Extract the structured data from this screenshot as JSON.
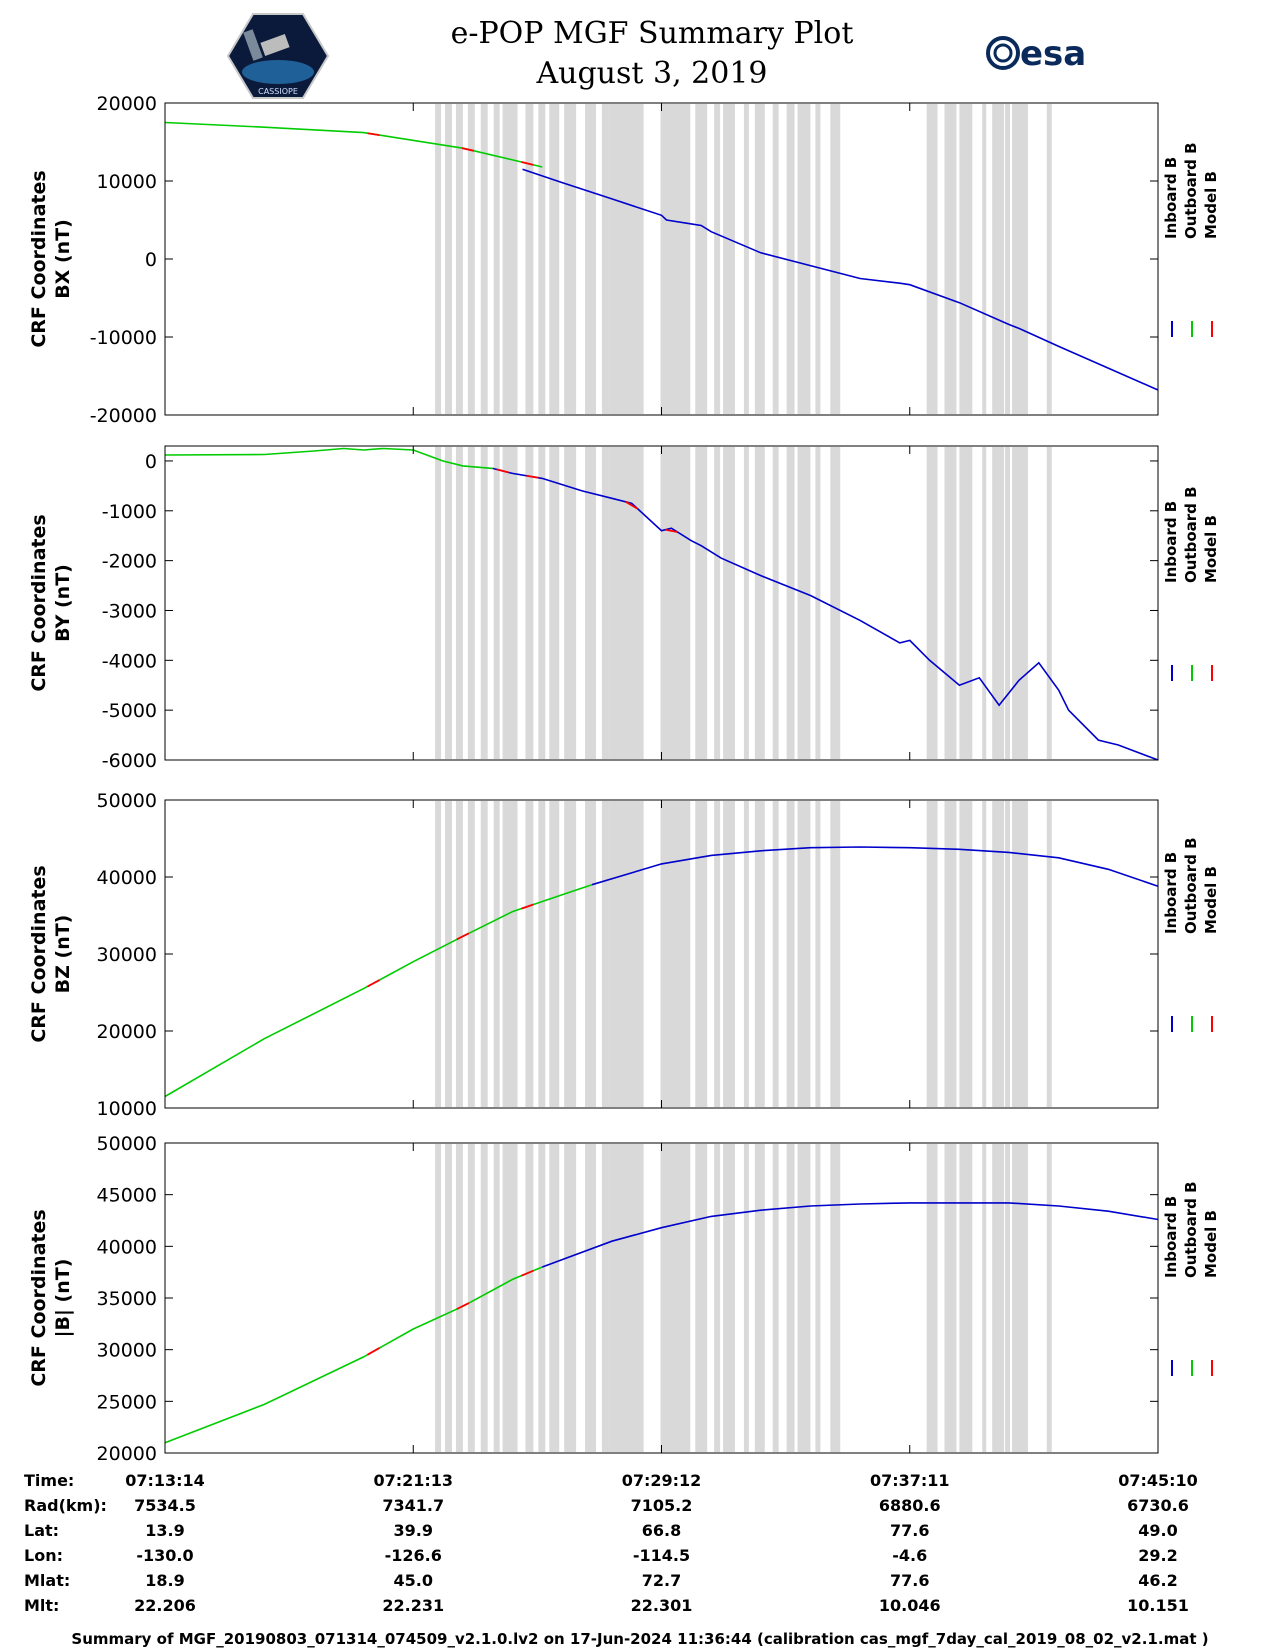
{
  "title": {
    "line1": "e-POP MGF Summary Plot",
    "line2": "August 3, 2019"
  },
  "logo_right": {
    "text": "esa"
  },
  "logo_left": {
    "text": "CASSIOPE"
  },
  "legend": [
    "Inboard B",
    "Outboard B",
    "Model B"
  ],
  "colors": {
    "inboard": "#0000cc",
    "outboard": "#00cc00",
    "model": "#ff0000",
    "shade": "#d9d9d9"
  },
  "chart_data": [
    {
      "type": "line",
      "component": "BX",
      "ylabel": [
        "CRF Coordinates",
        "BX (nT)"
      ],
      "ylim": [
        -20000,
        20000
      ],
      "yticks": [
        "20000",
        "10000",
        "0",
        "-10000",
        "-20000"
      ],
      "ytick_values": [
        20000,
        10000,
        0,
        -10000,
        -20000
      ],
      "xlim": [
        0,
        1.0
      ],
      "series": {
        "outboard": {
          "x": [
            0,
            0.1,
            0.2,
            0.3,
            0.35,
            0.38
          ],
          "y": [
            17500,
            16900,
            16200,
            14200,
            12700,
            11800
          ]
        },
        "model_marks": [
          0.21,
          0.305,
          0.365
        ],
        "inboard": {
          "x": [
            0.36,
            0.4,
            0.45,
            0.5,
            0.505,
            0.53,
            0.54,
            0.55,
            0.6,
            0.7,
            0.74,
            0.75,
            0.8,
            0.85,
            0.86,
            0.9,
            1.0
          ],
          "y": [
            11500,
            9800,
            7700,
            5600,
            5000,
            4500,
            4300,
            3500,
            800,
            -2500,
            -3100,
            -3300,
            -5600,
            -8400,
            -8900,
            -11200,
            -16800
          ]
        }
      }
    },
    {
      "type": "line",
      "component": "BY",
      "ylabel": [
        "CRF Coordinates",
        "BY (nT)"
      ],
      "ylim": [
        -6000,
        300
      ],
      "yticks": [
        "0",
        "-1000",
        "-2000",
        "-3000",
        "-4000",
        "-5000",
        "-6000"
      ],
      "ytick_values": [
        0,
        -1000,
        -2000,
        -3000,
        -4000,
        -5000,
        -6000
      ],
      "xlim": [
        0,
        1.0
      ],
      "series": {
        "outboard": {
          "x": [
            0,
            0.1,
            0.15,
            0.18,
            0.2,
            0.22,
            0.25,
            0.28,
            0.3,
            0.33
          ],
          "y": [
            120,
            130,
            200,
            250,
            220,
            250,
            220,
            0,
            -100,
            -150
          ]
        },
        "model_marks": [
          0.34,
          0.37,
          0.47,
          0.51
        ],
        "inboard": {
          "x": [
            0.33,
            0.35,
            0.38,
            0.42,
            0.45,
            0.47,
            0.5,
            0.51,
            0.53,
            0.54,
            0.56,
            0.6,
            0.65,
            0.7,
            0.74,
            0.75,
            0.77,
            0.8,
            0.82,
            0.84,
            0.86,
            0.88,
            0.9,
            0.91,
            0.94,
            0.96,
            1.0
          ],
          "y": [
            -150,
            -250,
            -350,
            -600,
            -750,
            -850,
            -1400,
            -1350,
            -1600,
            -1700,
            -1950,
            -2300,
            -2700,
            -3200,
            -3650,
            -3600,
            -4000,
            -4500,
            -4350,
            -4900,
            -4400,
            -4050,
            -4600,
            -5000,
            -5600,
            -5700,
            -6000
          ]
        }
      }
    },
    {
      "type": "line",
      "component": "BZ",
      "ylabel": [
        "CRF Coordinates",
        "BZ (nT)"
      ],
      "ylim": [
        10000,
        50000
      ],
      "yticks": [
        "50000",
        "40000",
        "30000",
        "20000",
        "10000"
      ],
      "ytick_values": [
        50000,
        40000,
        30000,
        20000,
        10000
      ],
      "xlim": [
        0,
        1.0
      ],
      "series": {
        "outboard": {
          "x": [
            0,
            0.1,
            0.2,
            0.25,
            0.3,
            0.35,
            0.4,
            0.43
          ],
          "y": [
            11500,
            19000,
            25500,
            29000,
            32300,
            35500,
            37700,
            39000
          ]
        },
        "model_marks": [
          0.21,
          0.3,
          0.365
        ],
        "inboard": {
          "x": [
            0.43,
            0.5,
            0.55,
            0.6,
            0.65,
            0.7,
            0.75,
            0.8,
            0.85,
            0.9,
            0.95,
            1.0
          ],
          "y": [
            39000,
            41700,
            42800,
            43400,
            43800,
            43900,
            43800,
            43600,
            43200,
            42500,
            41000,
            38800
          ]
        }
      }
    },
    {
      "type": "line",
      "component": "|B|",
      "ylabel": [
        "CRF Coordinates",
        "|B| (nT)"
      ],
      "ylim": [
        20000,
        50000
      ],
      "yticks": [
        "50000",
        "45000",
        "40000",
        "35000",
        "30000",
        "25000",
        "20000"
      ],
      "ytick_values": [
        50000,
        45000,
        40000,
        35000,
        30000,
        25000,
        20000
      ],
      "xlim": [
        0,
        1.0
      ],
      "series": {
        "outboard": {
          "x": [
            0,
            0.1,
            0.2,
            0.25,
            0.3,
            0.35,
            0.38
          ],
          "y": [
            21000,
            24700,
            29300,
            32000,
            34200,
            36800,
            38000
          ]
        },
        "model_marks": [
          0.21,
          0.3,
          0.365
        ],
        "inboard": {
          "x": [
            0.38,
            0.45,
            0.5,
            0.55,
            0.6,
            0.65,
            0.7,
            0.75,
            0.8,
            0.85,
            0.9,
            0.95,
            1.0
          ],
          "y": [
            38000,
            40500,
            41800,
            42900,
            43500,
            43900,
            44100,
            44200,
            44200,
            44200,
            43900,
            43400,
            42600
          ]
        }
      }
    }
  ],
  "gaps": [
    [
      0.272,
      0.278
    ],
    [
      0.282,
      0.289
    ],
    [
      0.293,
      0.3
    ],
    [
      0.305,
      0.312
    ],
    [
      0.318,
      0.325
    ],
    [
      0.331,
      0.337
    ],
    [
      0.34,
      0.355
    ],
    [
      0.363,
      0.371
    ],
    [
      0.376,
      0.383
    ],
    [
      0.387,
      0.397
    ],
    [
      0.402,
      0.414
    ],
    [
      0.423,
      0.434
    ],
    [
      0.44,
      0.448
    ],
    [
      0.448,
      0.482
    ],
    [
      0.499,
      0.529
    ],
    [
      0.534,
      0.546
    ],
    [
      0.553,
      0.559
    ],
    [
      0.562,
      0.574
    ],
    [
      0.583,
      0.588
    ],
    [
      0.594,
      0.604
    ],
    [
      0.612,
      0.618
    ],
    [
      0.626,
      0.634
    ],
    [
      0.637,
      0.65
    ],
    [
      0.655,
      0.66
    ],
    [
      0.67,
      0.68
    ],
    [
      0.767,
      0.778
    ],
    [
      0.785,
      0.797
    ],
    [
      0.8,
      0.813
    ],
    [
      0.823,
      0.827
    ],
    [
      0.833,
      0.845
    ],
    [
      0.846,
      0.851
    ],
    [
      0.853,
      0.869
    ],
    [
      0.888,
      0.893
    ]
  ],
  "info": {
    "labels": [
      "Time:",
      "Rad(km):",
      "Lat:",
      "Lon:",
      "Mlat:",
      "Mlt:"
    ],
    "columns": [
      [
        "07:13:14",
        "7534.5",
        "13.9",
        "-130.0",
        "18.9",
        "22.206"
      ],
      [
        "07:21:13",
        "7341.7",
        "39.9",
        "-126.6",
        "45.0",
        "22.231"
      ],
      [
        "07:29:12",
        "7105.2",
        "66.8",
        "-114.5",
        "72.7",
        "22.301"
      ],
      [
        "07:37:11",
        "6880.6",
        "77.6",
        "-4.6",
        "77.6",
        "10.046"
      ],
      [
        "07:45:10",
        "6730.6",
        "49.0",
        "29.2",
        "46.2",
        "10.151"
      ]
    ]
  },
  "footer": "Summary of MGF_20190803_071314_074509_v2.1.0.lv2 on 17-Jun-2024 11:36:44 (calibration cas_mgf_7day_cal_2019_08_02_v2.1.mat )"
}
